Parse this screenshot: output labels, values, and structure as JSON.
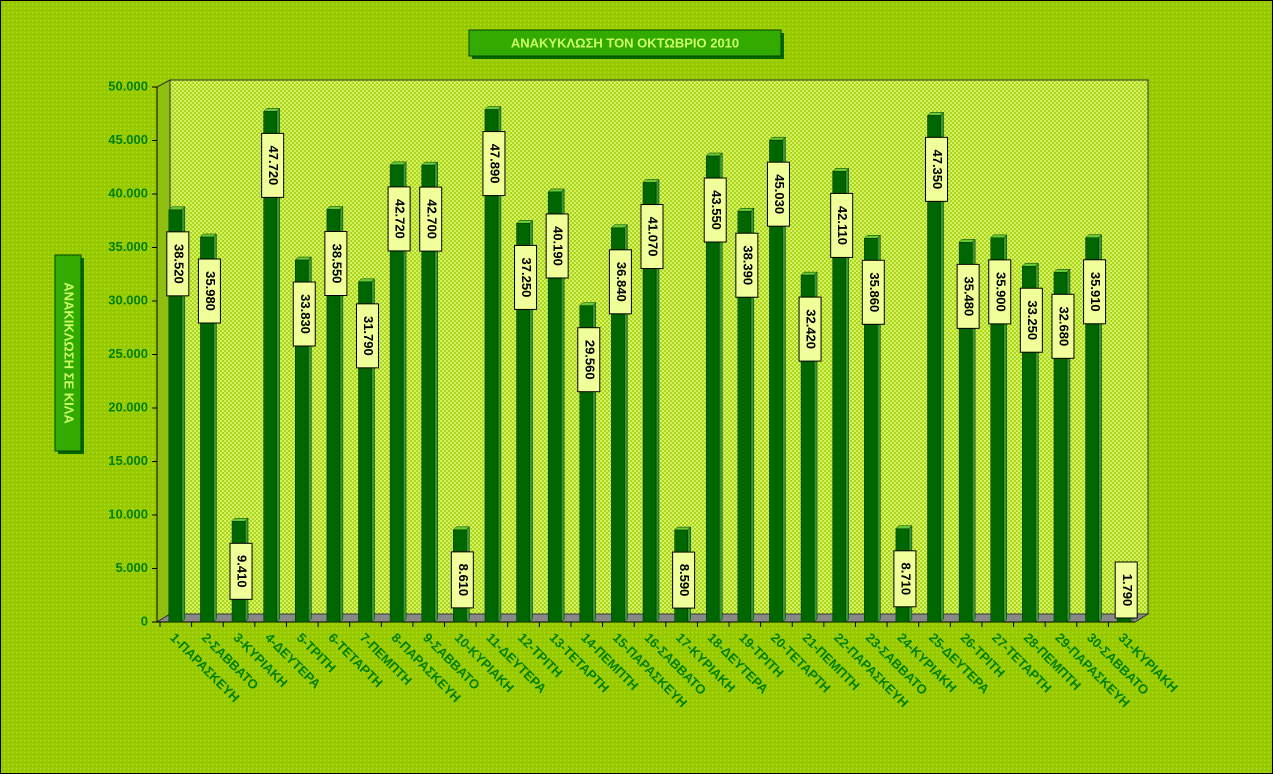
{
  "chart_data": {
    "type": "bar",
    "title": "ΑΝΑΚΥΚΛΩΣΗ ΤΟΝ ΟΚΤΩΒΡΙΟ 2010",
    "y_label": "ΑΝΑΚΙΚΛΩΣΗ ΣΕ ΚΙΛΑ",
    "categories": [
      "1-ΠΑΡΑΣΚΕΥΗ",
      "2-ΣΑΒΒΑΤΟ",
      "3-ΚΥΡΙΑΚΗ",
      "4-ΔΕΥΤΕΡΑ",
      "5-ΤΡΙΤΗ",
      "6-ΤΕΤΑΡΤΗ",
      "7-ΠΕΜΠΤΗ",
      "8-ΠΑΡΑΣΚΕΥΗ",
      "9-ΣΑΒΒΑΤΟ",
      "10-ΚΥΡΙΑΚΗ",
      "11-ΔΕΥΤΕΡΑ",
      "12-ΤΡΙΤΗ",
      "13-ΤΕΤΑΡΤΗ",
      "14-ΠΕΜΠΤΗ",
      "15-ΠΑΡΑΣΚΕΥΗ",
      "16-ΣΑΒΒΑΤΟ",
      "17-ΚΥΡΙΑΚΗ",
      "18-ΔΕΥΤΕΡΑ",
      "19-ΤΡΙΤΗ",
      "20-ΤΕΤΑΡΤΗ",
      "21-ΠΕΜΠΤΗ",
      "22-ΠΑΡΑΣΚΕΥΗ",
      "23-ΣΑΒΒΑΤΟ",
      "24-ΚΥΡΙΑΚΗ",
      "25-ΔΕΥΤΕΡΑ",
      "26-ΤΡΙΤΗ",
      "27-ΤΕΤΑΡΤΗ",
      "28-ΠΕΜΠΤΗ",
      "29-ΠΑΡΑΣΚΕΥΗ",
      "30-ΣΑΒΒΑΤΟ",
      "31-ΚΥΡΙΑΚΗ"
    ],
    "values": [
      38520,
      35980,
      9410,
      47720,
      33830,
      38550,
      31790,
      42720,
      42700,
      8610,
      47890,
      37250,
      40190,
      29560,
      36840,
      41070,
      8590,
      43550,
      38390,
      45030,
      32420,
      42110,
      35860,
      8710,
      47350,
      35480,
      35900,
      33250,
      32680,
      35910,
      1790
    ],
    "value_labels": [
      "38.520",
      "35.980",
      "9.410",
      "47.720",
      "33.830",
      "38.550",
      "31.790",
      "42.720",
      "42.700",
      "8.610",
      "47.890",
      "37.250",
      "40.190",
      "29.560",
      "36.840",
      "41.070",
      "8.590",
      "43.550",
      "38.390",
      "45.030",
      "32.420",
      "42.110",
      "35.860",
      "8.710",
      "47.350",
      "35.480",
      "35.900",
      "33.250",
      "32.680",
      "35.910",
      "1.790"
    ],
    "color": "#006600",
    "ylim": [
      0,
      50000
    ],
    "yticks": [
      0,
      {
        "value": 5000,
        "label": "5.000"
      },
      {
        "value": 10000,
        "label": "10.000"
      },
      {
        "value": 15000,
        "label": "15.000"
      },
      {
        "value": 20000,
        "label": "20.000"
      },
      {
        "value": 25000,
        "label": "25.000"
      },
      {
        "value": 30000,
        "label": "30.000"
      },
      {
        "value": 35000,
        "label": "35.000"
      },
      {
        "value": 40000,
        "label": "40.000"
      },
      {
        "value": 45000,
        "label": "45.000"
      },
      {
        "value": 50000,
        "label": "50.000"
      }
    ],
    "grid": false
  }
}
